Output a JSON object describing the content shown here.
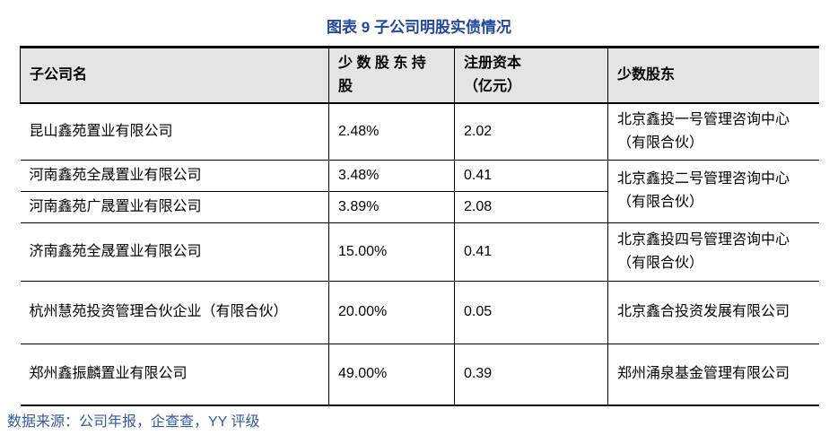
{
  "title": "图表 9 子公司明股实债情况",
  "colors": {
    "title_blue": "#2247A0",
    "source_blue": "#3358A6",
    "header_background": "#E4E4E4",
    "border": "#000000"
  },
  "table": {
    "headers": {
      "subsidiary_name": "子公司名",
      "minority_share": "少 数 股 东 持\n股",
      "registered_capital": "注册资本\n（亿元）",
      "minority_shareholder": "少数股东"
    },
    "rows": [
      {
        "name": "昆山鑫苑置业有限公司",
        "share": "2.48%",
        "capital": "2.02",
        "shareholder": "北京鑫投一号管理咨询中心（有限合伙）"
      },
      {
        "name": "河南鑫苑全晟置业有限公司",
        "share": "3.48%",
        "capital": "0.41",
        "shareholder": "北京鑫投二号管理咨询中心（有限合伙）"
      },
      {
        "name": "河南鑫苑广晟置业有限公司",
        "share": "3.89%",
        "capital": "2.08"
      },
      {
        "name": "济南鑫苑全晟置业有限公司",
        "share": "15.00%",
        "capital": "0.41",
        "shareholder": "北京鑫投四号管理咨询中心（有限合伙）"
      },
      {
        "name": "杭州慧苑投资管理合伙企业（有限合伙）",
        "share": "20.00%",
        "capital": "0.05",
        "shareholder": "北京鑫合投资发展有限公司"
      },
      {
        "name": "郑州鑫振麟置业有限公司",
        "share": "49.00%",
        "capital": "0.39",
        "shareholder": "郑州涌泉基金管理有限公司"
      }
    ]
  },
  "footer": {
    "source": "数据来源：公司年报，企查查，YY 评级"
  }
}
